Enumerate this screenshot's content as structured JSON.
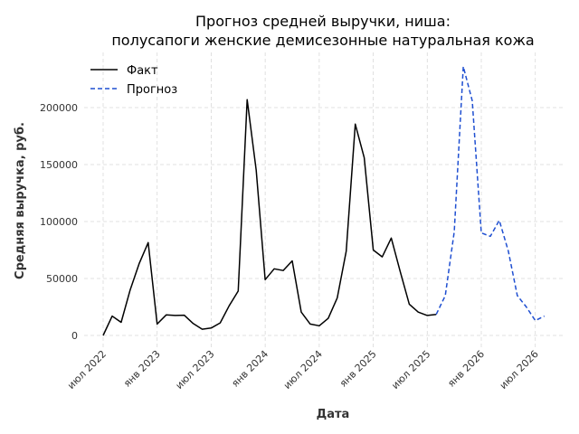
{
  "chart_data": {
    "type": "line",
    "title": [
      "Прогноз средней выручки, ниша:",
      "полусапоги женские демисезонные натуральная кожа"
    ],
    "xlabel": "Дата",
    "ylabel": "Средняя выручка, руб.",
    "ylim": [
      -10000,
      250000
    ],
    "yticks": [
      0,
      50000,
      100000,
      150000,
      200000
    ],
    "xticks": [
      {
        "date": "2022-07",
        "label": "июл 2022"
      },
      {
        "date": "2023-01",
        "label": "янв 2023"
      },
      {
        "date": "2023-07",
        "label": "июл 2023"
      },
      {
        "date": "2024-01",
        "label": "янв 2024"
      },
      {
        "date": "2024-07",
        "label": "июл 2024"
      },
      {
        "date": "2025-01",
        "label": "янв 2025"
      },
      {
        "date": "2025-07",
        "label": "июл 2025"
      },
      {
        "date": "2026-01",
        "label": "янв 2026"
      },
      {
        "date": "2026-07",
        "label": "июл 2026"
      }
    ],
    "grid": true,
    "legend_position": "top-left",
    "series": [
      {
        "name": "Факт",
        "style": "solid",
        "color": "#000000",
        "points": [
          [
            "2022-07",
            0
          ],
          [
            "2022-08",
            17000
          ],
          [
            "2022-09",
            11500
          ],
          [
            "2022-10",
            40000
          ],
          [
            "2022-11",
            63000
          ],
          [
            "2022-12",
            81500
          ],
          [
            "2023-01",
            10000
          ],
          [
            "2023-02",
            18000
          ],
          [
            "2023-03",
            17500
          ],
          [
            "2023-04",
            17800
          ],
          [
            "2023-05",
            10500
          ],
          [
            "2023-06",
            5500
          ],
          [
            "2023-07",
            6500
          ],
          [
            "2023-08",
            11000
          ],
          [
            "2023-09",
            26000
          ],
          [
            "2023-10",
            39000
          ],
          [
            "2023-11",
            207000
          ],
          [
            "2023-12",
            145000
          ],
          [
            "2024-01",
            49000
          ],
          [
            "2024-02",
            58500
          ],
          [
            "2024-03",
            57000
          ],
          [
            "2024-04",
            65500
          ],
          [
            "2024-05",
            20500
          ],
          [
            "2024-06",
            10000
          ],
          [
            "2024-07",
            8500
          ],
          [
            "2024-08",
            15000
          ],
          [
            "2024-09",
            33000
          ],
          [
            "2024-10",
            74000
          ],
          [
            "2024-11",
            185500
          ],
          [
            "2024-12",
            156000
          ],
          [
            "2025-01",
            75000
          ],
          [
            "2025-02",
            69000
          ],
          [
            "2025-03",
            85500
          ],
          [
            "2025-04",
            56000
          ],
          [
            "2025-05",
            27500
          ],
          [
            "2025-06",
            20500
          ],
          [
            "2025-07",
            17500
          ],
          [
            "2025-08",
            18500
          ]
        ]
      },
      {
        "name": "Прогноз",
        "style": "dashed",
        "color": "#1f4fd1",
        "points": [
          [
            "2025-08",
            18500
          ],
          [
            "2025-09",
            35000
          ],
          [
            "2025-10",
            91000
          ],
          [
            "2025-11",
            236000
          ],
          [
            "2025-12",
            206000
          ],
          [
            "2026-01",
            90000
          ],
          [
            "2026-02",
            87000
          ],
          [
            "2026-03",
            101000
          ],
          [
            "2026-04",
            74000
          ],
          [
            "2026-05",
            35000
          ],
          [
            "2026-06",
            25000
          ],
          [
            "2026-07",
            13000
          ],
          [
            "2026-08",
            17000
          ]
        ]
      }
    ]
  }
}
